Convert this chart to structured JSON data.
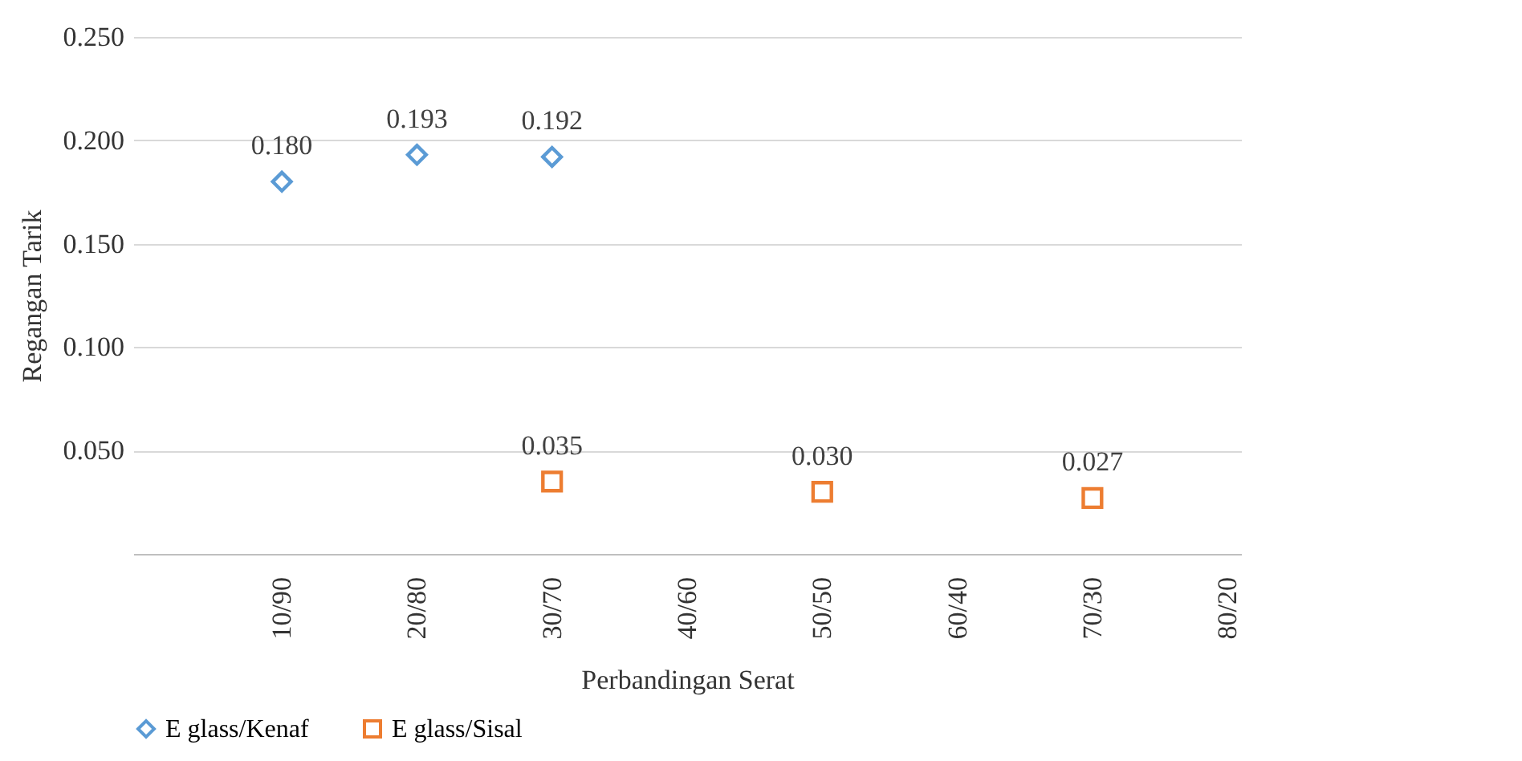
{
  "chart_data": {
    "type": "scatter",
    "xlabel": "Perbandingan Serat",
    "ylabel": "Regangan Tarik",
    "categories": [
      null,
      "10/90",
      "20/80",
      "30/70",
      "40/60",
      "50/50",
      "60/40",
      "70/30",
      "80/20"
    ],
    "series": [
      {
        "name": "E glass/Kenaf",
        "color": "#5b9bd5",
        "marker": "diamond",
        "values": [
          null,
          0.18,
          0.193,
          0.192,
          null,
          null,
          null,
          null,
          null
        ],
        "value_labels": [
          null,
          "0.180",
          "0.193",
          "0.192",
          null,
          null,
          null,
          null,
          null
        ]
      },
      {
        "name": "E glass/Sisal",
        "color": "#ed7d31",
        "marker": "square",
        "values": [
          null,
          null,
          null,
          0.035,
          null,
          0.03,
          null,
          0.027,
          null
        ],
        "value_labels": [
          null,
          null,
          null,
          "0.035",
          null,
          "0.030",
          null,
          "0.027",
          null
        ]
      }
    ],
    "ylim": [
      0,
      0.25
    ],
    "yticks": [
      {
        "value": 0.05,
        "label": "0.050"
      },
      {
        "value": 0.1,
        "label": "0.100"
      },
      {
        "value": 0.15,
        "label": "0.150"
      },
      {
        "value": 0.2,
        "label": "0.200"
      },
      {
        "value": 0.25,
        "label": "0.250"
      }
    ],
    "grid": "y",
    "legend": "bottom"
  }
}
